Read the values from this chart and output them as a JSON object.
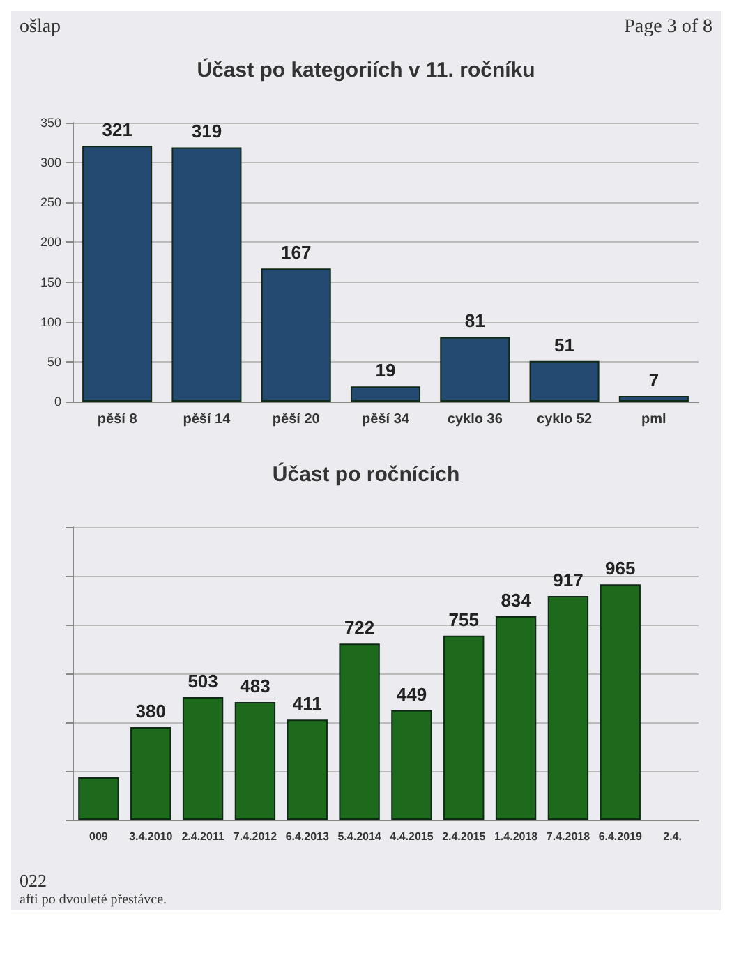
{
  "chart_data": [
    {
      "type": "bar",
      "title": "Účast po kategoriích v 11. ročníku",
      "categories": [
        "pěší 8",
        "pěší 14",
        "pěší 20",
        "pěší 34",
        "cyklo 36",
        "cyklo 52",
        "pml"
      ],
      "values": [
        321,
        319,
        167,
        19,
        81,
        51,
        7
      ],
      "color": "#244a72",
      "ylim": [
        0,
        350
      ],
      "yticks": [
        0,
        50,
        100,
        150,
        200,
        250,
        300,
        350
      ],
      "grid": "y",
      "data_labels": true,
      "annotations": [
        "ošlap",
        "Page 3 of 8"
      ]
    },
    {
      "type": "bar",
      "title": "Účast po ročnících",
      "categories": [
        "009",
        "3.4.2010",
        "2.4.2011",
        "7.4.2012",
        "6.4.2013",
        "5.4.2014",
        "4.4.2015",
        "2.4.2015",
        "1.4.2018",
        "7.4.2018",
        "6.4.2019",
        "2.4."
      ],
      "values": [
        174,
        380,
        503,
        483,
        411,
        722,
        449,
        755,
        834,
        917,
        965,
        null
      ],
      "value_labels": [
        null,
        "380",
        "503",
        "483",
        "411",
        "722",
        "449",
        "755",
        "834",
        "917",
        "965",
        null
      ],
      "color": "#1d6a1d",
      "ylim": [
        0,
        1200
      ],
      "yticks": [
        {
          "value": 0,
          "label": null
        },
        {
          "value": 200,
          "label": null
        },
        {
          "value": 400,
          "label": null
        },
        {
          "value": 600,
          "label": null
        },
        {
          "value": 800,
          "label": null
        },
        {
          "value": 1000,
          "label": null
        },
        {
          "value": 1200,
          "label": null
        }
      ],
      "grid": "y",
      "tick_labels": "x",
      "annotations": [
        "022",
        "afti po dvouleté přestávce."
      ]
    }
  ]
}
